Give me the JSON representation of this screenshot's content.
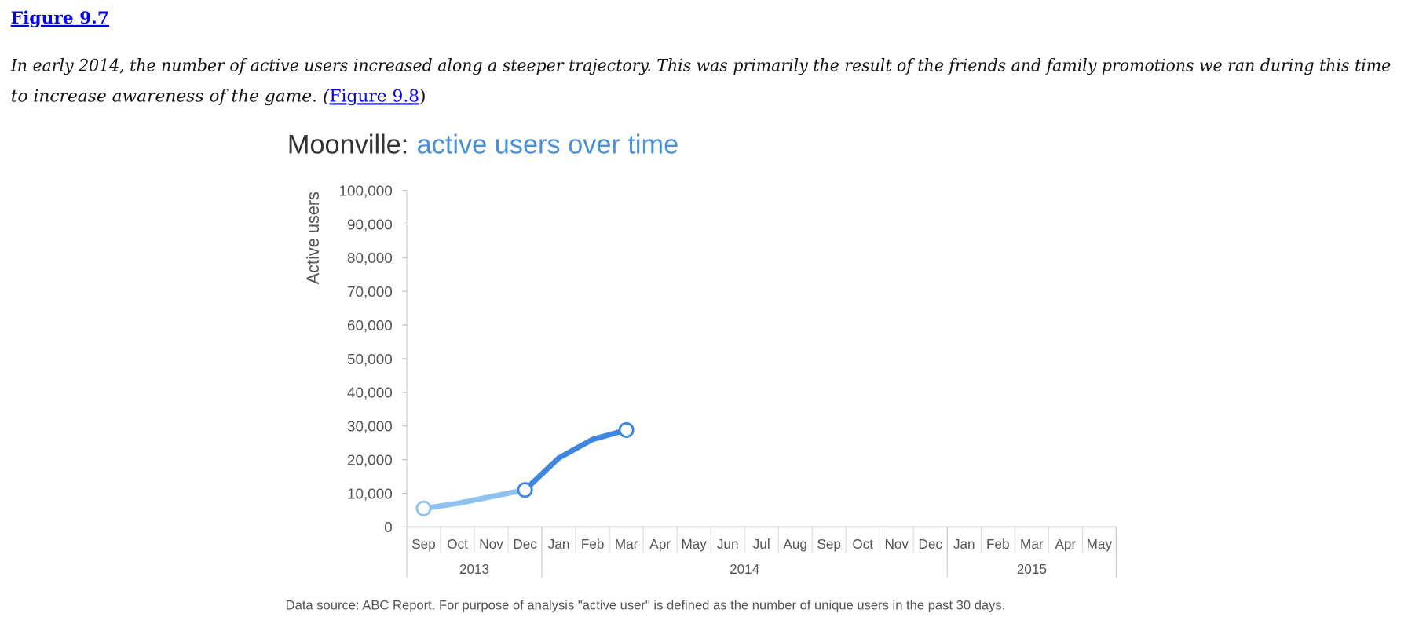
{
  "figure_link": "Figure 9.7",
  "paragraph": {
    "lines": [
      "In early 2014, the number of active users increased along a steeper trajectory. This was primarily the result of the friends and family promotions we ran during this time",
      "to increase awareness of the game. ("
    ],
    "link": "Figure 9.8",
    "after_link": ")"
  },
  "chart_data": {
    "type": "line",
    "title_parts": [
      "Moonville:",
      "active users over time"
    ],
    "title_colors": [
      "#333333",
      "#4a90d9"
    ],
    "y_label": "Active users",
    "categories": [
      "Sep",
      "Oct",
      "Nov",
      "Dec",
      "Jan",
      "Feb",
      "Mar",
      "Apr",
      "May",
      "Jun",
      "Jul",
      "Aug",
      "Sep",
      "Oct",
      "Nov",
      "Dec",
      "Jan",
      "Feb",
      "Mar",
      "Apr",
      "May"
    ],
    "groups": [
      {
        "label": "2013",
        "count": 4
      },
      {
        "label": "2014",
        "count": 12
      },
      {
        "label": "2015",
        "count": 5
      }
    ],
    "series": [
      {
        "color": "#8ec3f0",
        "markers": "ends",
        "values": [
          5500,
          7000,
          9000,
          11000,
          null,
          null,
          null,
          null,
          null,
          null,
          null,
          null,
          null,
          null,
          null,
          null,
          null,
          null,
          null,
          null,
          null
        ]
      },
      {
        "color": "#3f86e0",
        "markers": "ends",
        "values": [
          null,
          null,
          null,
          11000,
          20500,
          26000,
          28800,
          null,
          null,
          null,
          null,
          null,
          null,
          null,
          null,
          null,
          null,
          null,
          null,
          null,
          null
        ]
      }
    ],
    "ylim": [
      0,
      100000
    ],
    "yticks": [
      0,
      {
        "value": 10000,
        "label": "10,000"
      },
      {
        "value": 20000,
        "label": "20,000"
      },
      {
        "value": 30000,
        "label": "30,000"
      },
      {
        "value": 40000,
        "label": "40,000"
      },
      {
        "value": 50000,
        "label": "50,000"
      },
      {
        "value": 60000,
        "label": "60,000"
      },
      {
        "value": 70000,
        "label": "70,000"
      },
      {
        "value": 80000,
        "label": "80,000"
      },
      {
        "value": 90000,
        "label": "90,000"
      },
      {
        "value": 100000,
        "label": "100,000"
      }
    ],
    "grid": false,
    "source": "Data source: ABC Report. For purpose of analysis \"active user\" is defined as the number of unique users in the past 30 days."
  }
}
